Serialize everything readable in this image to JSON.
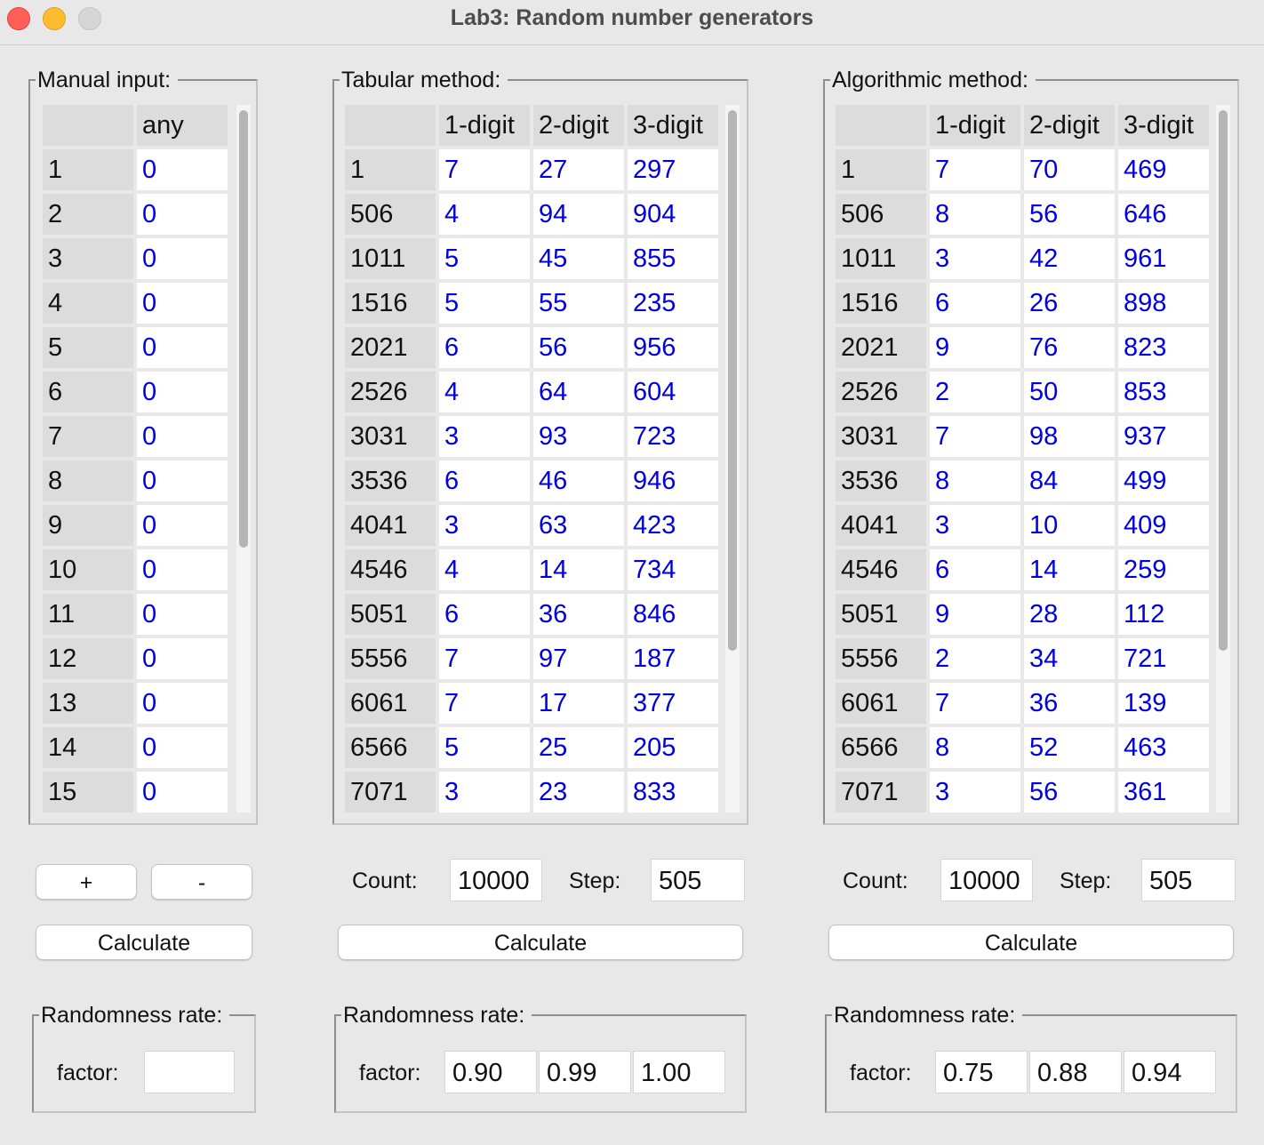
{
  "window": {
    "title": "Lab3: Random number generators"
  },
  "manual": {
    "legend": "Manual input:",
    "header": [
      "",
      "any"
    ],
    "rows": [
      [
        "1",
        "0"
      ],
      [
        "2",
        "0"
      ],
      [
        "3",
        "0"
      ],
      [
        "4",
        "0"
      ],
      [
        "5",
        "0"
      ],
      [
        "6",
        "0"
      ],
      [
        "7",
        "0"
      ],
      [
        "8",
        "0"
      ],
      [
        "9",
        "0"
      ],
      [
        "10",
        "0"
      ],
      [
        "11",
        "0"
      ],
      [
        "12",
        "0"
      ],
      [
        "13",
        "0"
      ],
      [
        "14",
        "0"
      ],
      [
        "15",
        "0"
      ]
    ],
    "plus_label": "+",
    "minus_label": "-",
    "calculate_label": "Calculate",
    "rate": {
      "legend": "Randomness rate:",
      "factor_label": "factor:",
      "factor_value": ""
    }
  },
  "tabular": {
    "legend": "Tabular method:",
    "header": [
      "",
      "1-digit",
      "2-digit",
      "3-digit"
    ],
    "rows": [
      [
        "1",
        "7",
        "27",
        "297"
      ],
      [
        "506",
        "4",
        "94",
        "904"
      ],
      [
        "1011",
        "5",
        "45",
        "855"
      ],
      [
        "1516",
        "5",
        "55",
        "235"
      ],
      [
        "2021",
        "6",
        "56",
        "956"
      ],
      [
        "2526",
        "4",
        "64",
        "604"
      ],
      [
        "3031",
        "3",
        "93",
        "723"
      ],
      [
        "3536",
        "6",
        "46",
        "946"
      ],
      [
        "4041",
        "3",
        "63",
        "423"
      ],
      [
        "4546",
        "4",
        "14",
        "734"
      ],
      [
        "5051",
        "6",
        "36",
        "846"
      ],
      [
        "5556",
        "7",
        "97",
        "187"
      ],
      [
        "6061",
        "7",
        "17",
        "377"
      ],
      [
        "6566",
        "5",
        "25",
        "205"
      ],
      [
        "7071",
        "3",
        "23",
        "833"
      ]
    ],
    "count_label": "Count:",
    "count_value": "10000",
    "step_label": "Step:",
    "step_value": "505",
    "calculate_label": "Calculate",
    "rate": {
      "legend": "Randomness rate:",
      "factor_label": "factor:",
      "values": [
        "0.90",
        "0.99",
        "1.00"
      ]
    }
  },
  "algorithmic": {
    "legend": "Algorithmic method:",
    "header": [
      "",
      "1-digit",
      "2-digit",
      "3-digit"
    ],
    "rows": [
      [
        "1",
        "7",
        "70",
        "469"
      ],
      [
        "506",
        "8",
        "56",
        "646"
      ],
      [
        "1011",
        "3",
        "42",
        "961"
      ],
      [
        "1516",
        "6",
        "26",
        "898"
      ],
      [
        "2021",
        "9",
        "76",
        "823"
      ],
      [
        "2526",
        "2",
        "50",
        "853"
      ],
      [
        "3031",
        "7",
        "98",
        "937"
      ],
      [
        "3536",
        "8",
        "84",
        "499"
      ],
      [
        "4041",
        "3",
        "10",
        "409"
      ],
      [
        "4546",
        "6",
        "14",
        "259"
      ],
      [
        "5051",
        "9",
        "28",
        "112"
      ],
      [
        "5556",
        "2",
        "34",
        "721"
      ],
      [
        "6061",
        "7",
        "36",
        "139"
      ],
      [
        "6566",
        "8",
        "52",
        "463"
      ],
      [
        "7071",
        "3",
        "56",
        "361"
      ]
    ],
    "count_label": "Count:",
    "count_value": "10000",
    "step_label": "Step:",
    "step_value": "505",
    "calculate_label": "Calculate",
    "rate": {
      "legend": "Randomness rate:",
      "factor_label": "factor:",
      "values": [
        "0.75",
        "0.88",
        "0.94"
      ]
    }
  },
  "colors": {
    "value_text": "#0000dd",
    "header_bg": "#dcdcdc",
    "window_bg": "#e8e8e8"
  }
}
